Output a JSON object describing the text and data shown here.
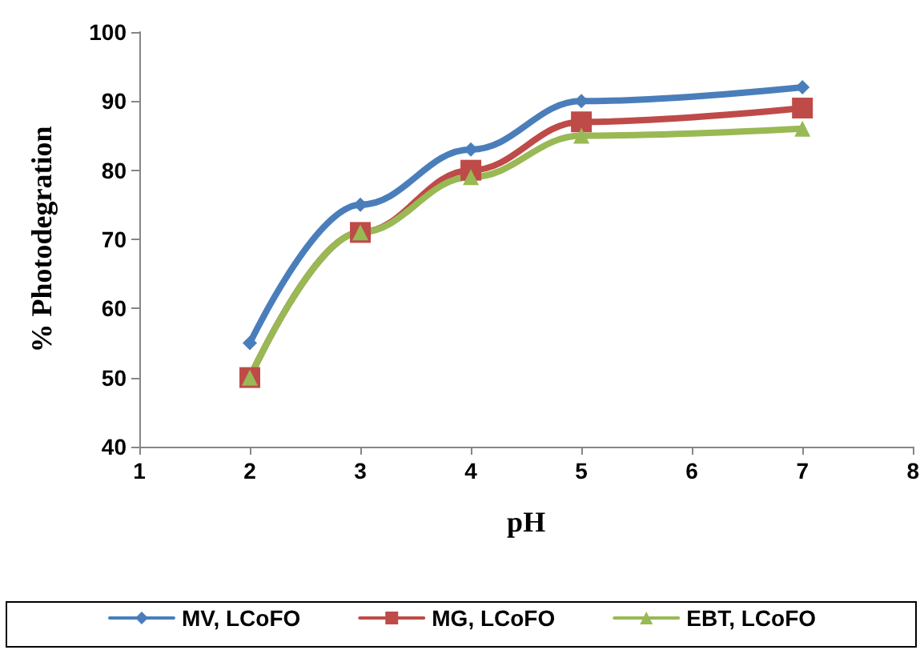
{
  "chart_data": {
    "type": "line",
    "xlabel": "pH",
    "ylabel": "% Photodegration",
    "x": [
      2,
      3,
      4,
      5,
      7
    ],
    "series": [
      {
        "name": "MV, LCoFO",
        "color": "#4a7ebb",
        "values": [
          55,
          75,
          83,
          90,
          92
        ],
        "marker": "diamond"
      },
      {
        "name": "MG, LCoFO",
        "color": "#be4b48",
        "values": [
          50,
          71,
          80,
          87,
          89
        ],
        "marker": "square"
      },
      {
        "name": "EBT, LCoFO",
        "color": "#98b954",
        "values": [
          50,
          71,
          79,
          85,
          86
        ],
        "marker": "triangle"
      }
    ],
    "xlim": [
      1,
      8
    ],
    "xticks": [
      1,
      2,
      3,
      4,
      5,
      6,
      7,
      8
    ],
    "ylim": [
      40,
      100
    ],
    "yticks": [
      40,
      50,
      60,
      70,
      80,
      90,
      100
    ],
    "grid": false,
    "legend": "bottom",
    "line_style": "solid"
  }
}
